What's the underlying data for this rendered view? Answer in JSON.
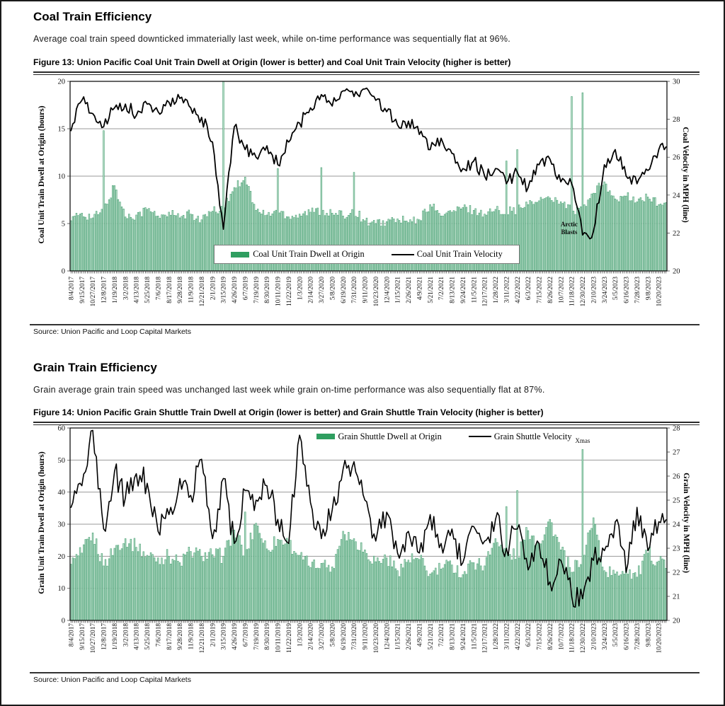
{
  "page": {
    "sections": [
      {
        "heading": "Coal Train Efficiency",
        "subtitle": "Average coal train speed downticked immaterially last week, while on-time performance was sequentially flat at 96%.",
        "figure_caption": "Figure 13: Union Pacific Coal Unit Train Dwell at Origin (lower is better) and Coal Unit Train Velocity (higher is better)",
        "source": "Source:  Union Pacific and Loop Capital  Markets"
      },
      {
        "heading": "Grain Train Efficiency",
        "subtitle": "Grain average grain train speed was unchanged last week while grain on-time performance was also sequentially flat at 87%.",
        "figure_caption": "Figure 14: Union Pacific Grain Shuttle Train Dwell at Origin (lower is better) and Grain Shuttle Train Velocity (higher is better)",
        "source": "Source:  Union Pacific and Loop Capital  Markets"
      }
    ]
  },
  "colors": {
    "bar_fill": "#b9dcc8",
    "bar_edge": "#47a173",
    "legend_green": "#2f9e60",
    "line_black": "#000000",
    "grid": "#9a9a9a"
  },
  "chart_data": [
    {
      "type": "bar+line",
      "title": "Figure 13: Union Pacific Coal Unit Train Dwell at Origin (lower is better) and Coal Unit Train Velocity (higher is better)",
      "categories": [
        "8/4/2017",
        "9/15/2017",
        "10/27/2017",
        "12/8/2017",
        "1/19/2018",
        "3/2/2018",
        "4/13/2018",
        "5/25/2018",
        "7/6/2018",
        "8/17/2018",
        "9/28/2018",
        "11/9/2018",
        "12/21/2018",
        "2/1/2019",
        "3/15/2019",
        "4/26/2019",
        "6/7/2019",
        "7/19/2019",
        "8/30/2019",
        "10/11/2019",
        "11/22/2019",
        "1/3/2020",
        "2/14/2020",
        "3/27/2020",
        "5/8/2020",
        "6/19/2020",
        "7/31/2020",
        "9/11/2020",
        "10/23/2020",
        "12/4/2020",
        "1/15/2021",
        "2/26/2021",
        "4/9/2021",
        "5/21/2021",
        "7/2/2021",
        "8/13/2021",
        "9/24/2021",
        "11/5/2021",
        "12/17/2021",
        "1/28/2022",
        "3/11/2022",
        "4/22/2022",
        "6/3/2022",
        "7/15/2022",
        "8/26/2022",
        "10/7/2022",
        "11/18/2022",
        "12/30/2022",
        "2/10/2023",
        "3/24/2023",
        "5/5/2023",
        "6/16/2023",
        "7/28/2023",
        "9/8/2023",
        "10/20/2023"
      ],
      "series": [
        {
          "name": "Coal Unit Train Dwell at Origin",
          "type": "bar",
          "axis": "left",
          "color": "#2f9e60",
          "values": [
            5.3,
            6.1,
            5.6,
            14.8,
            9.0,
            5.7,
            5.9,
            6.5,
            5.8,
            6.2,
            5.6,
            6.0,
            5.4,
            6.3,
            20.0,
            8.8,
            9.9,
            6.4,
            5.9,
            10.8,
            5.7,
            6.0,
            6.2,
            10.9,
            6.1,
            5.8,
            10.4,
            5.3,
            5.0,
            5.2,
            5.5,
            5.1,
            5.4,
            7.0,
            5.8,
            6.2,
            6.7,
            6.4,
            6.0,
            6.5,
            11.6,
            12.8,
            7.0,
            7.4,
            7.7,
            7.3,
            18.4,
            18.8,
            8.2,
            9.4,
            7.6,
            7.9,
            7.3,
            7.8,
            7.0
          ]
        },
        {
          "name": "Coal Unit Train Velocity",
          "type": "line",
          "axis": "right",
          "color": "#000000",
          "values": [
            27.4,
            29.0,
            28.3,
            27.6,
            28.6,
            28.8,
            28.2,
            28.8,
            28.4,
            28.9,
            29.1,
            28.6,
            28.1,
            26.8,
            22.2,
            27.6,
            26.4,
            26.0,
            26.6,
            25.6,
            26.8,
            27.8,
            28.6,
            29.3,
            28.7,
            29.5,
            29.2,
            29.6,
            29.0,
            28.4,
            27.7,
            27.9,
            27.2,
            26.4,
            27.0,
            26.2,
            25.4,
            25.8,
            25.0,
            25.4,
            24.6,
            25.2,
            24.4,
            25.6,
            25.9,
            24.7,
            24.6,
            21.9,
            22.1,
            25.6,
            26.4,
            25.0,
            24.6,
            25.3,
            26.4
          ]
        }
      ],
      "left_axis": {
        "label": "Coal Unit Train Dwell at Origin (hours)",
        "min": 0,
        "max": 20,
        "ticks": [
          0,
          5,
          10,
          15,
          20
        ]
      },
      "right_axis": {
        "label": "Coal Velocity in MPH (line)",
        "min": 20,
        "max": 30,
        "ticks": [
          20,
          22,
          24,
          26,
          28,
          30
        ]
      },
      "annotations": [
        {
          "text": "Arctic Blasts",
          "lines": [
            "Arctic",
            "Blasts"
          ],
          "near_category": "12/30/2022"
        }
      ],
      "legend_position": "bottom-center-boxed",
      "grid": true
    },
    {
      "type": "bar+line",
      "title": "Figure 14: Union Pacific Grain Shuttle Train Dwell at Origin (lower is better) and Grain Shuttle Train Velocity (higher is better)",
      "categories": [
        "8/4/2017",
        "9/15/2017",
        "10/27/2017",
        "12/8/2017",
        "1/19/2018",
        "3/2/2018",
        "4/13/2018",
        "5/25/2018",
        "7/6/2018",
        "8/17/2018",
        "9/28/2018",
        "11/9/2018",
        "12/21/2018",
        "2/1/2019",
        "3/15/2019",
        "4/26/2019",
        "6/7/2019",
        "7/19/2019",
        "8/30/2019",
        "10/11/2019",
        "11/22/2019",
        "1/3/2020",
        "2/14/2020",
        "3/27/2020",
        "5/8/2020",
        "6/19/2020",
        "7/31/2020",
        "9/11/2020",
        "10/23/2020",
        "12/4/2020",
        "1/15/2021",
        "2/26/2021",
        "4/9/2021",
        "5/21/2021",
        "7/2/2021",
        "8/13/2021",
        "9/24/2021",
        "11/5/2021",
        "12/17/2021",
        "1/28/2022",
        "3/11/2022",
        "4/22/2022",
        "6/3/2022",
        "7/15/2022",
        "8/26/2022",
        "10/7/2022",
        "11/18/2022",
        "12/30/2022",
        "2/10/2023",
        "3/24/2023",
        "5/5/2023",
        "6/16/2023",
        "7/28/2023",
        "9/8/2023",
        "10/20/2023"
      ],
      "series": [
        {
          "name": "Grain Shuttle Dwell at Origin",
          "type": "bar",
          "axis": "left",
          "color": "#2f9e60",
          "values": [
            17.5,
            21.0,
            27.3,
            17.0,
            22.5,
            25.5,
            22.8,
            20.3,
            19.5,
            20.0,
            18.0,
            21.5,
            20.0,
            20.5,
            20.0,
            28.2,
            33.8,
            30.3,
            22.3,
            25.3,
            24.0,
            20.3,
            16.5,
            17.8,
            16.7,
            27.8,
            25.5,
            22.0,
            18.3,
            19.5,
            15.5,
            18.8,
            19.0,
            14.5,
            16.0,
            17.3,
            14.3,
            18.0,
            17.0,
            25.5,
            35.5,
            40.5,
            28.0,
            24.0,
            31.5,
            22.0,
            15.0,
            53.3,
            32.0,
            15.5,
            14.5,
            16.5,
            13.5,
            21.0,
            18.5
          ]
        },
        {
          "name": "Grain Shuttle Velocity",
          "type": "line",
          "axis": "right",
          "color": "#000000",
          "values": [
            24.7,
            25.6,
            27.9,
            23.8,
            26.2,
            25.1,
            26.1,
            25.7,
            23.7,
            24.4,
            25.9,
            25.2,
            26.7,
            23.4,
            25.9,
            23.2,
            25.4,
            25.0,
            25.6,
            24.2,
            23.2,
            27.7,
            24.9,
            23.4,
            24.6,
            26.3,
            26.6,
            25.0,
            23.3,
            24.5,
            22.8,
            23.7,
            22.8,
            24.4,
            23.2,
            23.8,
            22.4,
            23.9,
            23.3,
            24.2,
            23.0,
            23.8,
            22.1,
            23.2,
            21.6,
            22.5,
            21.0,
            20.9,
            22.5,
            22.9,
            24.1,
            22.0,
            24.7,
            22.9,
            24.1
          ]
        }
      ],
      "left_axis": {
        "label": "Grain Unit Train Dwell at Origin (hours)",
        "min": 0,
        "max": 60,
        "ticks": [
          0,
          10,
          20,
          30,
          40,
          50,
          60
        ]
      },
      "right_axis": {
        "label": "Grain Velocity in MPH (line)",
        "min": 20,
        "max": 28,
        "ticks": [
          20,
          21,
          22,
          23,
          24,
          25,
          26,
          27,
          28
        ]
      },
      "annotations": [
        {
          "text": "Xmas",
          "lines": [
            "Xmas"
          ],
          "near_category": "12/30/2022"
        }
      ],
      "legend_position": "top-center",
      "grid": true
    }
  ]
}
